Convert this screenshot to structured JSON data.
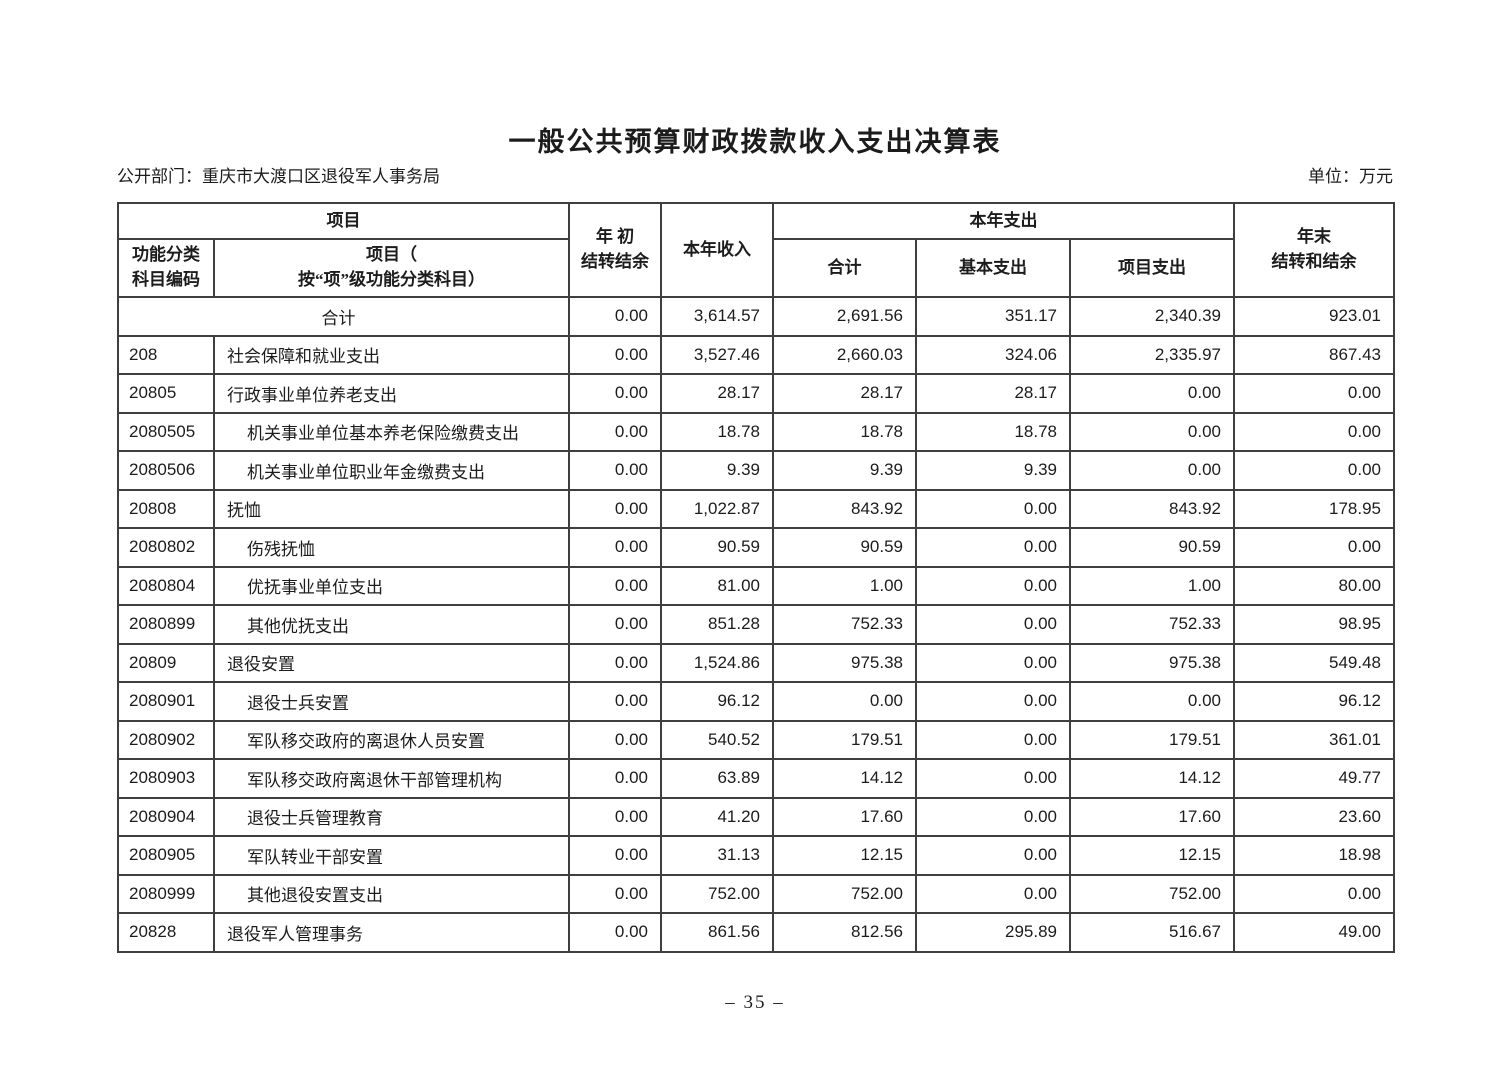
{
  "page": {
    "title": "一般公共预算财政拨款收入支出决算表",
    "department": "公开部门：重庆市大渡口区退役军人事务局",
    "unit": "单位：万元",
    "page_number": "– 35 –"
  },
  "table": {
    "header": {
      "group_project": "项目",
      "col_code_line1": "功能分类",
      "col_code_line2": "科目编码",
      "col_name_line1": "项目（",
      "col_name_line2": "按“项”级功能分类科目）",
      "col_opening_line1": "年 初",
      "col_opening_line2": "结转结余",
      "col_income": "本年收入",
      "group_expenditure": "本年支出",
      "col_exp_total": "合计",
      "col_exp_basic": "基本支出",
      "col_exp_project": "项目支出",
      "col_closing_line1": "年末",
      "col_closing_line2": "结转和结余"
    },
    "rows": [
      {
        "total": true,
        "code": "",
        "name": "合计",
        "indent": false,
        "values": [
          "0.00",
          "3,614.57",
          "2,691.56",
          "351.17",
          "2,340.39",
          "923.01"
        ]
      },
      {
        "total": false,
        "code": "208",
        "name": "社会保障和就业支出",
        "indent": false,
        "values": [
          "0.00",
          "3,527.46",
          "2,660.03",
          "324.06",
          "2,335.97",
          "867.43"
        ]
      },
      {
        "total": false,
        "code": "20805",
        "name": "行政事业单位养老支出",
        "indent": false,
        "values": [
          "0.00",
          "28.17",
          "28.17",
          "28.17",
          "0.00",
          "0.00"
        ]
      },
      {
        "total": false,
        "code": "2080505",
        "name": "机关事业单位基本养老保险缴费支出",
        "indent": true,
        "values": [
          "0.00",
          "18.78",
          "18.78",
          "18.78",
          "0.00",
          "0.00"
        ]
      },
      {
        "total": false,
        "code": "2080506",
        "name": "机关事业单位职业年金缴费支出",
        "indent": true,
        "values": [
          "0.00",
          "9.39",
          "9.39",
          "9.39",
          "0.00",
          "0.00"
        ]
      },
      {
        "total": false,
        "code": "20808",
        "name": "抚恤",
        "indent": false,
        "values": [
          "0.00",
          "1,022.87",
          "843.92",
          "0.00",
          "843.92",
          "178.95"
        ]
      },
      {
        "total": false,
        "code": "2080802",
        "name": "伤残抚恤",
        "indent": true,
        "values": [
          "0.00",
          "90.59",
          "90.59",
          "0.00",
          "90.59",
          "0.00"
        ]
      },
      {
        "total": false,
        "code": "2080804",
        "name": "优抚事业单位支出",
        "indent": true,
        "values": [
          "0.00",
          "81.00",
          "1.00",
          "0.00",
          "1.00",
          "80.00"
        ]
      },
      {
        "total": false,
        "code": "2080899",
        "name": "其他优抚支出",
        "indent": true,
        "values": [
          "0.00",
          "851.28",
          "752.33",
          "0.00",
          "752.33",
          "98.95"
        ]
      },
      {
        "total": false,
        "code": "20809",
        "name": "退役安置",
        "indent": false,
        "values": [
          "0.00",
          "1,524.86",
          "975.38",
          "0.00",
          "975.38",
          "549.48"
        ]
      },
      {
        "total": false,
        "code": "2080901",
        "name": "退役士兵安置",
        "indent": true,
        "values": [
          "0.00",
          "96.12",
          "0.00",
          "0.00",
          "0.00",
          "96.12"
        ]
      },
      {
        "total": false,
        "code": "2080902",
        "name": "军队移交政府的离退休人员安置",
        "indent": true,
        "values": [
          "0.00",
          "540.52",
          "179.51",
          "0.00",
          "179.51",
          "361.01"
        ]
      },
      {
        "total": false,
        "code": "2080903",
        "name": "军队移交政府离退休干部管理机构",
        "indent": true,
        "values": [
          "0.00",
          "63.89",
          "14.12",
          "0.00",
          "14.12",
          "49.77"
        ]
      },
      {
        "total": false,
        "code": "2080904",
        "name": "退役士兵管理教育",
        "indent": true,
        "values": [
          "0.00",
          "41.20",
          "17.60",
          "0.00",
          "17.60",
          "23.60"
        ]
      },
      {
        "total": false,
        "code": "2080905",
        "name": "军队转业干部安置",
        "indent": true,
        "values": [
          "0.00",
          "31.13",
          "12.15",
          "0.00",
          "12.15",
          "18.98"
        ]
      },
      {
        "total": false,
        "code": "2080999",
        "name": "其他退役安置支出",
        "indent": true,
        "values": [
          "0.00",
          "752.00",
          "752.00",
          "0.00",
          "752.00",
          "0.00"
        ]
      },
      {
        "total": false,
        "code": "20828",
        "name": "退役军人管理事务",
        "indent": false,
        "values": [
          "0.00",
          "861.56",
          "812.56",
          "295.89",
          "516.67",
          "49.00"
        ]
      }
    ]
  }
}
